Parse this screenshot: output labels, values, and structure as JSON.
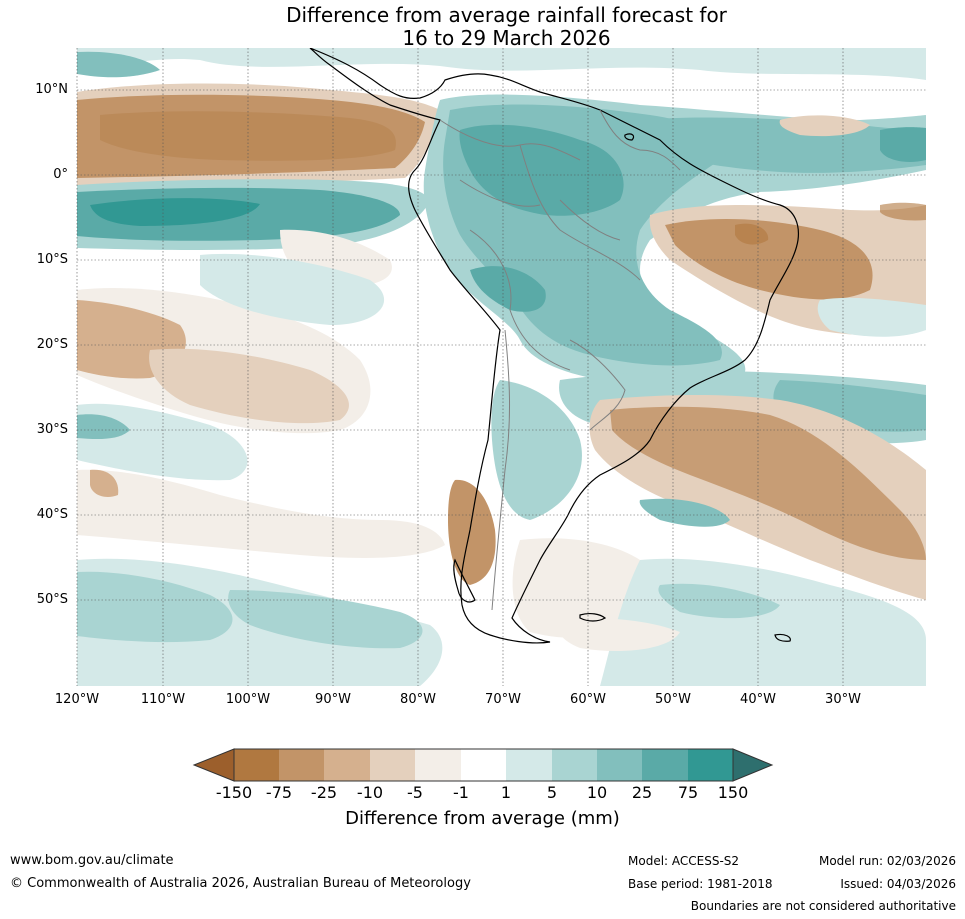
{
  "title": {
    "line1": "Difference from average rainfall forecast for",
    "line2": "16 to 29 March 2026"
  },
  "map": {
    "lat_labels": [
      "10°N",
      "0°",
      "10°S",
      "20°S",
      "30°S",
      "40°S",
      "50°S"
    ],
    "lon_labels": [
      "120°W",
      "110°W",
      "100°W",
      "90°W",
      "80°W",
      "70°W",
      "60°W",
      "50°W",
      "40°W",
      "30°W"
    ]
  },
  "colorbar": {
    "label": "Difference from average (mm)",
    "ticks": [
      "-150",
      "-75",
      "-25",
      "-10",
      "-5",
      "-1",
      "1",
      "5",
      "10",
      "25",
      "75",
      "150"
    ],
    "colors": [
      "#9c5f2c",
      "#b07840",
      "#c29468",
      "#d5b08e",
      "#e4d0bd",
      "#f3eee8",
      "#ffffff",
      "#d4e9e8",
      "#a9d4d2",
      "#82bfbd",
      "#5aaaa7",
      "#319893",
      "#2e6f6e"
    ]
  },
  "footer": {
    "website": "www.bom.gov.au/climate",
    "copyright": "© Commonwealth of Australia 2026, Australian Bureau of Meteorology",
    "model": "Model: ACCESS-S2",
    "base_period": "Base period: 1981-2018",
    "model_run": "Model run: 02/03/2026",
    "issued": "Issued: 04/03/2026",
    "disclaimer": "Boundaries are not considered authoritative"
  }
}
